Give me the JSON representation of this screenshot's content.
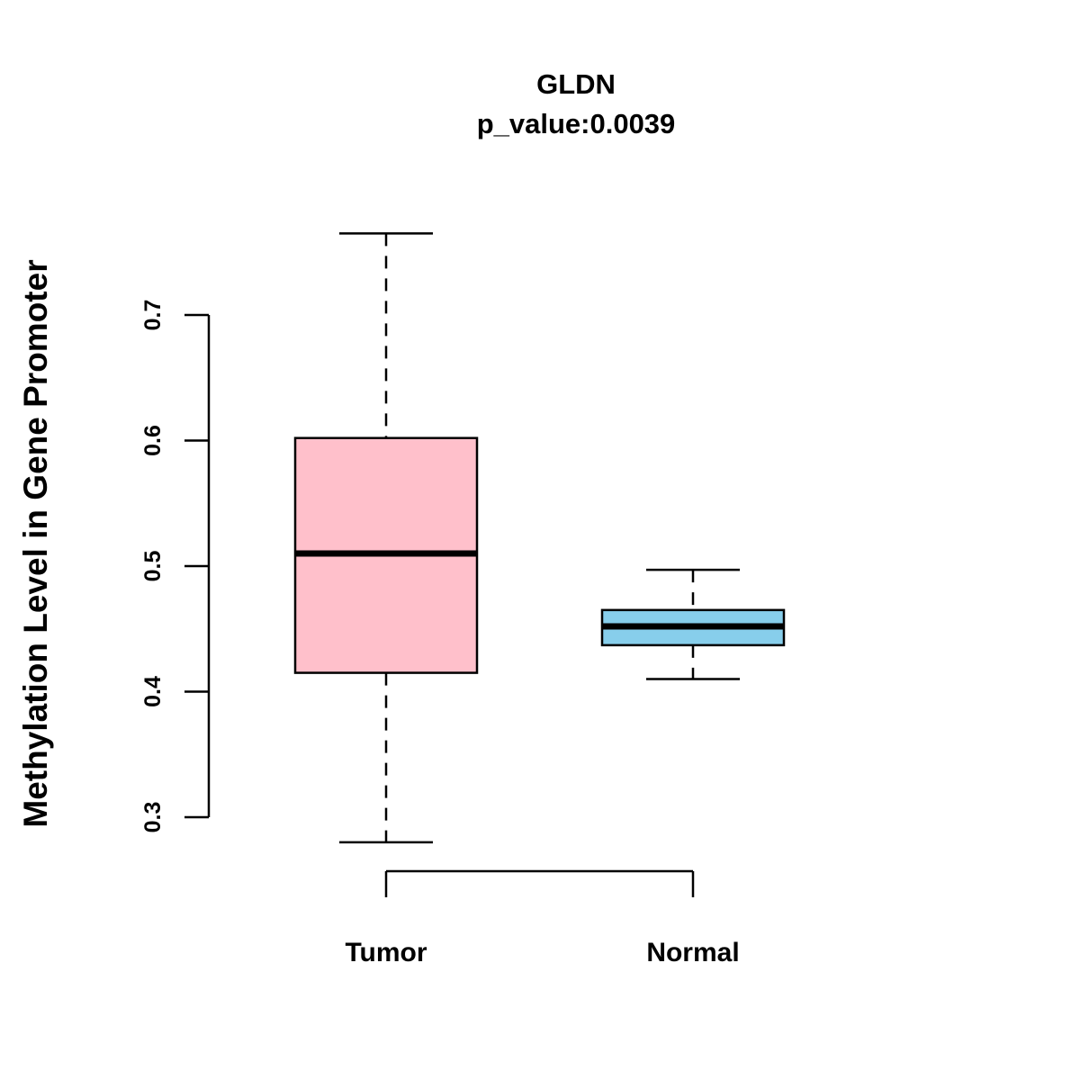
{
  "title": "GLDN",
  "subtitle": "p_value:0.0039",
  "ylabel": "Methylation Level in Gene Promoter",
  "chart_data": {
    "type": "boxplot",
    "title": "GLDN",
    "subtitle": "p_value:0.0039",
    "xlabel": "",
    "ylabel": "Methylation Level in Gene Promoter",
    "categories": [
      "Tumor",
      "Normal"
    ],
    "yticks": [
      "0.3",
      "0.4",
      "0.5",
      "0.6",
      "0.7"
    ],
    "ylim": [
      0.26,
      0.78
    ],
    "grid": false,
    "legend": "none",
    "series": [
      {
        "name": "Tumor",
        "color": "#FFC0CB",
        "whisker_low": 0.28,
        "q1": 0.415,
        "median": 0.51,
        "q3": 0.602,
        "whisker_high": 0.765
      },
      {
        "name": "Normal",
        "color": "#87CEEB",
        "whisker_low": 0.41,
        "q1": 0.437,
        "median": 0.452,
        "q3": 0.465,
        "whisker_high": 0.497
      }
    ]
  }
}
